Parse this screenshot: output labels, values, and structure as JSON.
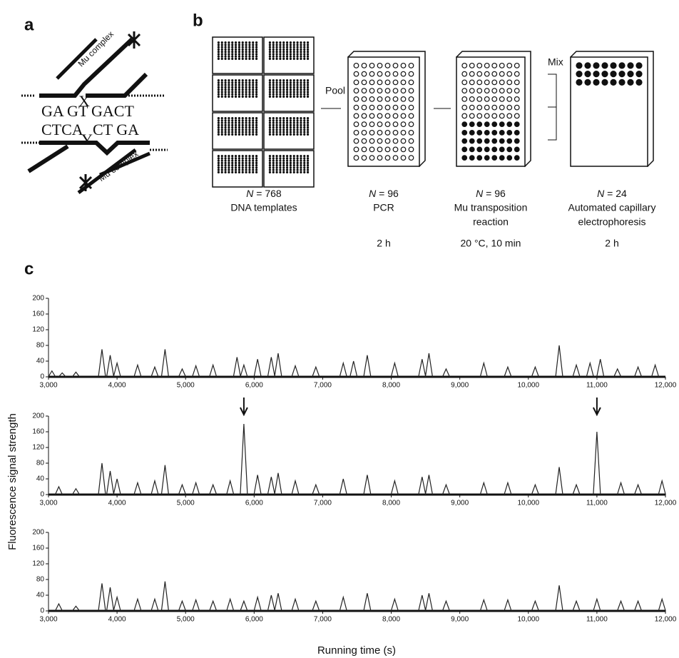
{
  "panel_labels": [
    "a",
    "b",
    "c"
  ],
  "diagram_a": {
    "top_left": "GA GT",
    "top_x": "X",
    "top_right": "GACT",
    "bottom_left": "CTCA",
    "bottom_y": "Y",
    "bottom_right": "CT GA",
    "complex_top": "Mu complex",
    "complex_bottom": "Mu complex"
  },
  "workflow": {
    "steps": [
      {
        "n": "N",
        "count": " = 768",
        "label": [
          "DNA templates"
        ],
        "time": null
      },
      {
        "n": "N",
        "count": " = 96",
        "label": [
          "PCR"
        ],
        "time": "2 h"
      },
      {
        "n": "N",
        "count": " = 96",
        "label": [
          "Mu transposition",
          "reaction"
        ],
        "time": "20 °C, 10 min"
      },
      {
        "n": "N",
        "count": " = 24",
        "label": [
          "Automated capillary",
          "electrophoresis"
        ],
        "time": "2 h"
      }
    ],
    "connectors": [
      "Pool",
      "Mix"
    ]
  },
  "figure_c": {
    "ylabel": "Fluorescence signal strength",
    "xlabel": "Running time (s)"
  },
  "chart_data": [
    {
      "type": "peaks",
      "color": "#222222",
      "x": [
        3050,
        3200,
        3400,
        3780,
        3900,
        4000,
        4300,
        4550,
        4700,
        4950,
        5150,
        5400,
        5750,
        5850,
        6050,
        6250,
        6350,
        6600,
        6900,
        7300,
        7450,
        7650,
        8050,
        8450,
        8550,
        8800,
        9350,
        9700,
        10100,
        10450,
        10700,
        10900,
        11050,
        11300,
        11600,
        11850
      ],
      "values": [
        15,
        10,
        12,
        70,
        55,
        35,
        30,
        25,
        70,
        20,
        28,
        30,
        50,
        30,
        45,
        50,
        60,
        28,
        25,
        35,
        40,
        55,
        35,
        45,
        60,
        20,
        35,
        25,
        25,
        80,
        30,
        35,
        45,
        20,
        25,
        30
      ],
      "xlim": [
        3000,
        12000
      ],
      "xticks": [
        {
          "value": 3000,
          "label": "3,000"
        },
        {
          "value": 4000,
          "label": "4,000"
        },
        {
          "value": 5000,
          "label": "5,000"
        },
        {
          "value": 6000,
          "label": "6,000"
        },
        {
          "value": 7000,
          "label": "7,000"
        },
        {
          "value": 8000,
          "label": "8,000"
        },
        {
          "value": 9000,
          "label": "9,000"
        },
        {
          "value": 10000,
          "label": "10,000"
        },
        {
          "value": 11000,
          "label": "11,000"
        },
        {
          "value": 12000,
          "label": "12,000"
        }
      ],
      "ylim": [
        0,
        200
      ],
      "yticks": [
        0,
        40,
        80,
        120,
        160,
        200
      ]
    },
    {
      "type": "peaks",
      "color": "#222222",
      "x": [
        3150,
        3400,
        3780,
        3900,
        4000,
        4300,
        4550,
        4700,
        4950,
        5150,
        5400,
        5650,
        5850,
        6050,
        6250,
        6350,
        6600,
        6900,
        7300,
        7650,
        8050,
        8450,
        8550,
        8800,
        9350,
        9700,
        10100,
        10450,
        10700,
        11000,
        11350,
        11600,
        11950
      ],
      "values": [
        20,
        15,
        80,
        60,
        40,
        30,
        35,
        75,
        25,
        30,
        25,
        35,
        180,
        50,
        45,
        55,
        35,
        25,
        40,
        50,
        35,
        45,
        50,
        25,
        30,
        30,
        25,
        70,
        25,
        160,
        30,
        25,
        35
      ],
      "arrows": [
        5850,
        11000
      ],
      "xlim": [
        3000,
        12000
      ],
      "xticks": [
        {
          "value": 3000,
          "label": "3,000"
        },
        {
          "value": 4000,
          "label": "4,000"
        },
        {
          "value": 5000,
          "label": "5,000"
        },
        {
          "value": 6000,
          "label": "6,000"
        },
        {
          "value": 7000,
          "label": "7,000"
        },
        {
          "value": 8000,
          "label": "8,000"
        },
        {
          "value": 9000,
          "label": "9,000"
        },
        {
          "value": 10000,
          "label": "10,000"
        },
        {
          "value": 11000,
          "label": "11,000"
        },
        {
          "value": 12000,
          "label": "12,000"
        }
      ],
      "ylim": [
        0,
        200
      ],
      "yticks": [
        0,
        40,
        80,
        120,
        160,
        200
      ]
    },
    {
      "type": "peaks",
      "color": "#222222",
      "x": [
        3150,
        3400,
        3780,
        3900,
        4000,
        4300,
        4550,
        4700,
        4950,
        5150,
        5400,
        5650,
        5850,
        6050,
        6250,
        6350,
        6600,
        6900,
        7300,
        7650,
        8050,
        8450,
        8550,
        8800,
        9350,
        9700,
        10100,
        10450,
        10700,
        11000,
        11350,
        11600,
        11950
      ],
      "values": [
        18,
        12,
        70,
        60,
        35,
        30,
        30,
        75,
        25,
        28,
        25,
        30,
        25,
        35,
        40,
        45,
        30,
        25,
        35,
        45,
        30,
        40,
        45,
        25,
        28,
        28,
        25,
        65,
        25,
        30,
        25,
        25,
        30
      ],
      "xlim": [
        3000,
        12000
      ],
      "xticks": [
        {
          "value": 3000,
          "label": "3,000"
        },
        {
          "value": 4000,
          "label": "4,000"
        },
        {
          "value": 5000,
          "label": "5,000"
        },
        {
          "value": 6000,
          "label": "6,000"
        },
        {
          "value": 7000,
          "label": "7,000"
        },
        {
          "value": 8000,
          "label": "8,000"
        },
        {
          "value": 9000,
          "label": "9,000"
        },
        {
          "value": 10000,
          "label": "10,000"
        },
        {
          "value": 11000,
          "label": "11,000"
        },
        {
          "value": 12000,
          "label": "12,000"
        }
      ],
      "ylim": [
        0,
        200
      ],
      "yticks": [
        0,
        40,
        80,
        120,
        160,
        200
      ]
    }
  ]
}
